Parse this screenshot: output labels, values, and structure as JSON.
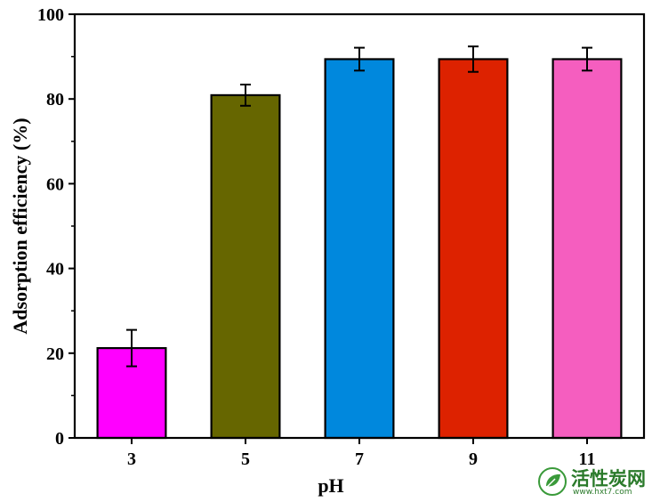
{
  "chart_data": {
    "type": "bar",
    "title": "",
    "xlabel": "pH",
    "ylabel": "Adsorption efficiency (%)",
    "categories": [
      "3",
      "5",
      "7",
      "9",
      "11"
    ],
    "values": [
      21.2,
      80.9,
      89.4,
      89.4,
      89.4
    ],
    "errors": [
      4.3,
      2.5,
      2.7,
      3.0,
      2.7
    ],
    "colors": [
      "#ff00ff",
      "#666600",
      "#0088dd",
      "#dd2200",
      "#f55ebf"
    ],
    "ylim": [
      0,
      100
    ],
    "yticks": [
      "0",
      "20",
      "40",
      "60",
      "80",
      "100"
    ],
    "grid": false,
    "legend": "none"
  },
  "watermark": {
    "name": "活性炭网",
    "url": "www.hxt7.com"
  }
}
